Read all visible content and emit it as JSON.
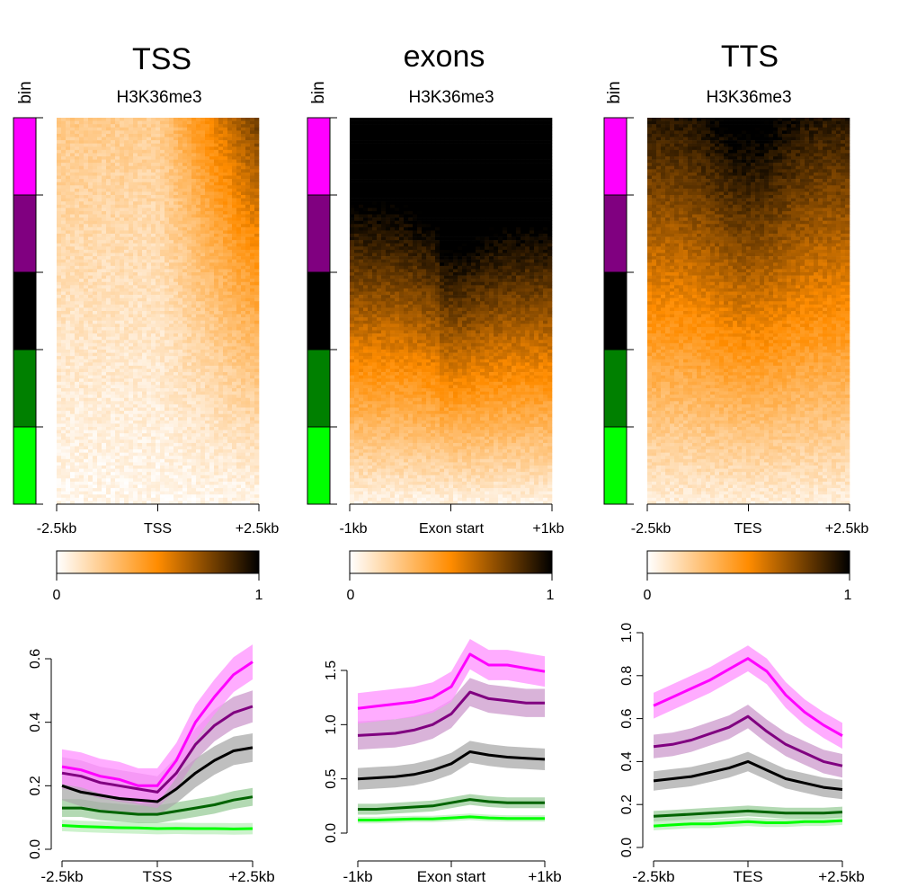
{
  "colorbar": {
    "min_label": "0",
    "max_label": "1",
    "stops": [
      "#ffffff",
      "#ff8c00",
      "#000000"
    ]
  },
  "heatmap_color": {
    "low": "#ffffff",
    "mid": "#ff8c00",
    "high": "#000000"
  },
  "bins": {
    "label": "bin",
    "colors": [
      "#ff00ff",
      "#800080",
      "#000000",
      "#008000",
      "#00ff00"
    ]
  },
  "panels": [
    {
      "id": "tss",
      "title": "TSS",
      "subtitle": "H3K36me3",
      "heatmap_xlabels": [
        "-2.5kb",
        "TSS",
        "+2.5kb"
      ],
      "profile_xlabels": [
        "-2.5kb",
        "TSS",
        "+2.5kb"
      ]
    },
    {
      "id": "exons",
      "title": "exons",
      "subtitle": "H3K36me3",
      "heatmap_xlabels": [
        "-1kb",
        "Exon start",
        "+1kb"
      ],
      "profile_xlabels": [
        "-1kb",
        "Exon start",
        "+1kb"
      ]
    },
    {
      "id": "tts",
      "title": "TTS",
      "subtitle": "H3K36me3",
      "heatmap_xlabels": [
        "-2.5kb",
        "TES",
        "+2.5kb"
      ],
      "profile_xlabels": [
        "-2.5kb",
        "TES",
        "+2.5kb"
      ]
    }
  ],
  "chart_data": [
    {
      "type": "line",
      "title": "TSS",
      "x": [
        -2500,
        -2000,
        -1500,
        -1000,
        -500,
        0,
        500,
        1000,
        1500,
        2000,
        2500
      ],
      "ylim": [
        0,
        0.6
      ],
      "yticks": [
        0.0,
        0.2,
        0.4,
        0.6
      ],
      "ytick_labels": [
        "0.0",
        "0.2",
        "0.4",
        "0.6"
      ],
      "band_halfwidth": [
        0.055,
        0.05,
        0.045,
        0.028,
        0.018
      ],
      "series": [
        {
          "name": "bin 1",
          "color": "#ff00ff",
          "band": "#ff90ff",
          "values": [
            0.26,
            0.25,
            0.23,
            0.22,
            0.2,
            0.2,
            0.28,
            0.4,
            0.48,
            0.55,
            0.59
          ]
        },
        {
          "name": "bin 2",
          "color": "#800080",
          "band": "#cc99cc",
          "values": [
            0.24,
            0.23,
            0.21,
            0.2,
            0.19,
            0.18,
            0.24,
            0.33,
            0.39,
            0.43,
            0.45
          ]
        },
        {
          "name": "bin 3",
          "color": "#000000",
          "band": "#aaaaaa",
          "values": [
            0.2,
            0.18,
            0.17,
            0.16,
            0.155,
            0.15,
            0.19,
            0.24,
            0.28,
            0.31,
            0.32
          ]
        },
        {
          "name": "bin 4",
          "color": "#006400",
          "band": "#99cc99",
          "values": [
            0.13,
            0.13,
            0.12,
            0.115,
            0.11,
            0.11,
            0.12,
            0.13,
            0.14,
            0.155,
            0.165
          ]
        },
        {
          "name": "bin 5",
          "color": "#00ff00",
          "band": "#bbeebb",
          "values": [
            0.075,
            0.072,
            0.07,
            0.068,
            0.067,
            0.065,
            0.066,
            0.065,
            0.065,
            0.064,
            0.065
          ]
        }
      ]
    },
    {
      "type": "line",
      "title": "exons",
      "x": [
        -1000,
        -800,
        -600,
        -400,
        -200,
        0,
        200,
        400,
        600,
        800,
        1000
      ],
      "ylim": [
        0,
        1.5
      ],
      "yticks": [
        0.0,
        0.5,
        1.0,
        1.5
      ],
      "ytick_labels": [
        "0.0",
        "0.5",
        "1.0",
        "1.5"
      ],
      "band_halfwidth": [
        0.14,
        0.13,
        0.1,
        0.05,
        0.03
      ],
      "series": [
        {
          "name": "bin 1",
          "color": "#ff00ff",
          "band": "#ff90ff",
          "values": [
            1.15,
            1.17,
            1.19,
            1.21,
            1.25,
            1.35,
            1.65,
            1.55,
            1.55,
            1.52,
            1.49
          ]
        },
        {
          "name": "bin 2",
          "color": "#800080",
          "band": "#cc99cc",
          "values": [
            0.9,
            0.91,
            0.92,
            0.95,
            1.0,
            1.1,
            1.3,
            1.24,
            1.22,
            1.2,
            1.2
          ]
        },
        {
          "name": "bin 3",
          "color": "#000000",
          "band": "#aaaaaa",
          "values": [
            0.5,
            0.51,
            0.52,
            0.54,
            0.58,
            0.64,
            0.75,
            0.72,
            0.7,
            0.69,
            0.68
          ]
        },
        {
          "name": "bin 4",
          "color": "#006400",
          "band": "#99cc99",
          "values": [
            0.22,
            0.22,
            0.23,
            0.24,
            0.25,
            0.28,
            0.31,
            0.29,
            0.28,
            0.28,
            0.28
          ]
        },
        {
          "name": "bin 5",
          "color": "#00ff00",
          "band": "#bbeebb",
          "values": [
            0.12,
            0.12,
            0.125,
            0.13,
            0.13,
            0.14,
            0.15,
            0.14,
            0.135,
            0.135,
            0.135
          ]
        }
      ]
    },
    {
      "type": "line",
      "title": "TTS",
      "x": [
        -2500,
        -2000,
        -1500,
        -1000,
        -500,
        0,
        500,
        1000,
        1500,
        2000,
        2500
      ],
      "ylim": [
        0,
        1.0
      ],
      "yticks": [
        0.0,
        0.2,
        0.4,
        0.6,
        0.8,
        1.0
      ],
      "ytick_labels": [
        "0.0",
        "0.2",
        "0.4",
        "0.6",
        "0.8",
        "1.0"
      ],
      "band_halfwidth": [
        0.06,
        0.055,
        0.045,
        0.025,
        0.02
      ],
      "series": [
        {
          "name": "bin 1",
          "color": "#ff00ff",
          "band": "#ff90ff",
          "values": [
            0.66,
            0.7,
            0.74,
            0.78,
            0.83,
            0.88,
            0.82,
            0.71,
            0.63,
            0.57,
            0.52
          ]
        },
        {
          "name": "bin 2",
          "color": "#800080",
          "band": "#cc99cc",
          "values": [
            0.47,
            0.48,
            0.5,
            0.53,
            0.56,
            0.61,
            0.54,
            0.48,
            0.44,
            0.4,
            0.38
          ]
        },
        {
          "name": "bin 3",
          "color": "#000000",
          "band": "#aaaaaa",
          "values": [
            0.31,
            0.32,
            0.33,
            0.35,
            0.37,
            0.4,
            0.36,
            0.32,
            0.3,
            0.28,
            0.27
          ]
        },
        {
          "name": "bin 4",
          "color": "#006400",
          "band": "#99cc99",
          "values": [
            0.145,
            0.15,
            0.155,
            0.16,
            0.165,
            0.17,
            0.165,
            0.16,
            0.16,
            0.16,
            0.165
          ]
        },
        {
          "name": "bin 5",
          "color": "#00ff00",
          "band": "#bbeebb",
          "values": [
            0.1,
            0.105,
            0.11,
            0.11,
            0.115,
            0.12,
            0.115,
            0.115,
            0.12,
            0.12,
            0.125
          ]
        }
      ]
    }
  ]
}
